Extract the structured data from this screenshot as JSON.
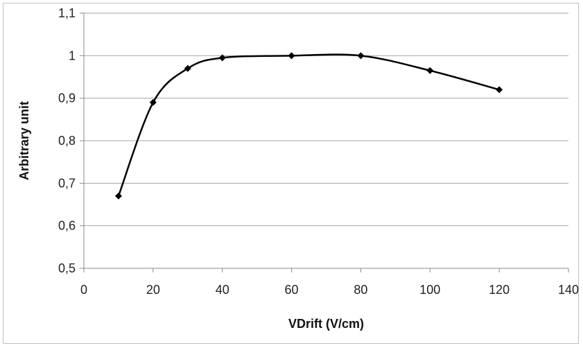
{
  "chart_data": {
    "type": "line",
    "title": "",
    "xlabel": "VDrift (V/cm)",
    "ylabel": "Arbitrary unit",
    "xlim": [
      0,
      140
    ],
    "ylim": [
      0.5,
      1.1
    ],
    "x_ticks": [
      "0",
      "20",
      "40",
      "60",
      "80",
      "100",
      "120",
      "140"
    ],
    "y_ticks": [
      "0,5",
      "0,6",
      "0,7",
      "0,8",
      "0,9",
      "1",
      "1,1"
    ],
    "grid": "horizontal",
    "legend": "none",
    "series": [
      {
        "x": [
          10,
          20,
          30,
          40,
          60,
          80,
          100,
          120
        ],
        "y": [
          0.67,
          0.89,
          0.97,
          0.995,
          1.0,
          1.0,
          0.965,
          0.92
        ],
        "color": "#000000",
        "marker": "diamond",
        "smooth": true
      }
    ]
  }
}
